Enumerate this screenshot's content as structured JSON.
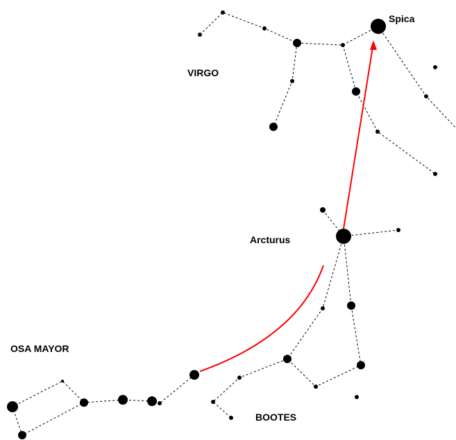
{
  "stars": {
    "spica": "Spica",
    "arcturus": "Arcturus"
  },
  "constellations": {
    "virgo": "VIRGO",
    "osa_mayor": "OSA MAYOR",
    "bootes": "BOOTES"
  }
}
